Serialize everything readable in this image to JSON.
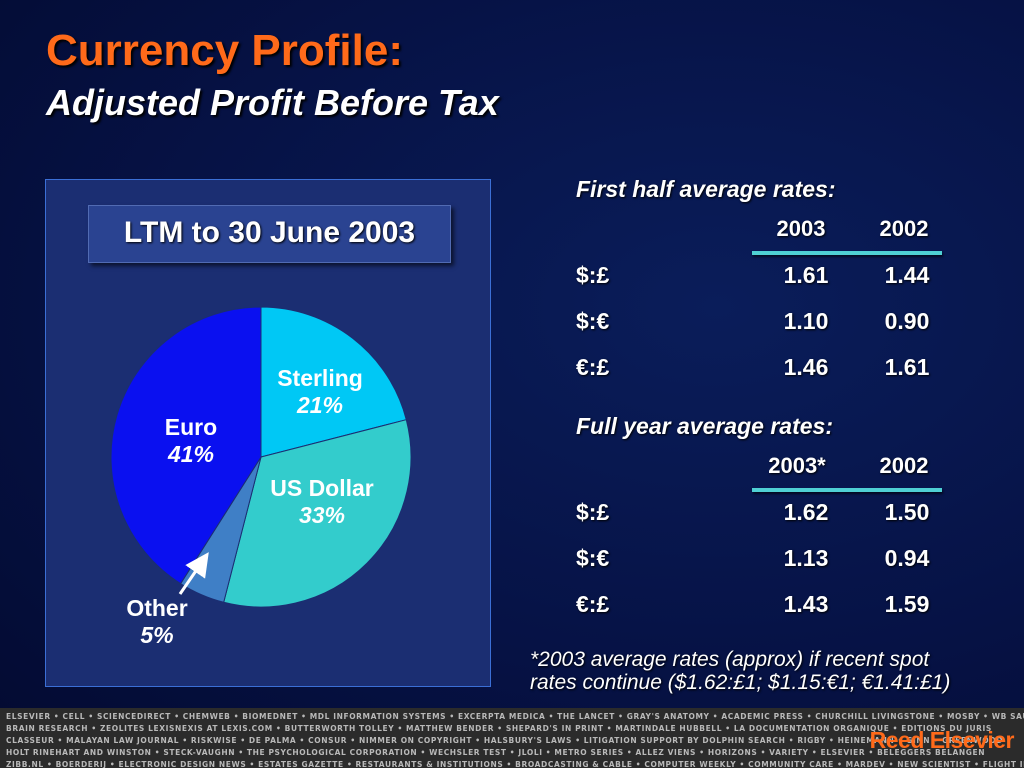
{
  "title": "Currency Profile:",
  "subtitle": "Adjusted Profit Before Tax",
  "chart_data": {
    "type": "pie",
    "title": "LTM to 30 June 2003",
    "slices": [
      {
        "name": "Sterling",
        "value": 21,
        "label": "21%",
        "color": "#00c8f5"
      },
      {
        "name": "US Dollar",
        "value": 33,
        "label": "33%",
        "color": "#33cccc"
      },
      {
        "name": "Other",
        "value": 5,
        "label": "5%",
        "color": "#3f7fc6"
      },
      {
        "name": "Euro",
        "value": 41,
        "label": "41%",
        "color": "#0a10f0"
      }
    ]
  },
  "first_half": {
    "heading": "First half average rates:",
    "col1": "2003",
    "col2": "2002",
    "rows": [
      {
        "pair": "$:£",
        "v1": "1.61",
        "v2": "1.44"
      },
      {
        "pair": "$:€",
        "v1": "1.10",
        "v2": "0.90"
      },
      {
        "pair": "€:£",
        "v1": "1.46",
        "v2": "1.61"
      }
    ]
  },
  "full_year": {
    "heading": "Full year average rates:",
    "col1": "2003*",
    "col2": "2002",
    "rows": [
      {
        "pair": "$:£",
        "v1": "1.62",
        "v2": "1.50"
      },
      {
        "pair": "$:€",
        "v1": "1.13",
        "v2": "0.94"
      },
      {
        "pair": "€:£",
        "v1": "1.43",
        "v2": "1.59"
      }
    ]
  },
  "footnote": {
    "line1": "*2003 average rates (approx) if recent spot",
    "line2": "rates continue ($1.62:£1; $1.15:€1; €1.41:£1)"
  },
  "footer": {
    "lines": [
      "ELSEVIER • CELL • SCIENCEDIRECT • CHEMWEB • BIOMEDNET • MDL INFORMATION SYSTEMS • EXCERPTA MEDICA • THE LANCET • GRAY'S ANATOMY • ACADEMIC PRESS • CHURCHILL LIVINGSTONE • MOSBY • WB SAUNDERS • MD CONSULT",
      "BRAIN RESEARCH • ZEOLITES LEXISNEXIS  AT LEXIS.COM • BUTTERWORTH TOLLEY • MATTHEW BENDER  • SHEPARD'S  IN PRINT • MARTINDALE HUBBELL  • LA DOCUMENTATION ORGANIQUE • EDITIONS DU JURIS",
      "CLASSEUR • MALAYAN LAW JOURNAL • RISKWISE  • DE PALMA • CONSUR • NIMMER ON COPYRIGHT • HALSBURY'S LAWS • LITIGATION SUPPORT BY DOLPHIN SEARCH • RIGBY • HEINEMANN • GINN • GREENWOOD",
      "HOLT RINEHART AND WINSTON • STECK-VAUGHN • THE PSYCHOLOGICAL CORPORATION • WECHSLER TEST • JLOLI • METRO SERIES • ALLEZ VIENS • HORIZONS • VARIETY • ELSEVIER • BELEGGERS BELANGEN",
      "ZIBB.NL • BOERDERIJ • ELECTRONIC DESIGN NEWS • ESTATES GAZETTE • RESTAURANTS & INSTITUTIONS • BROADCASTING & CABLE • COMPUTER WEEKLY • COMMUNITY CARE • MARDEV • NEW SCIENTIST • FLIGHT INTERNATIONAL"
    ],
    "logo": "Reed Elsevier"
  }
}
